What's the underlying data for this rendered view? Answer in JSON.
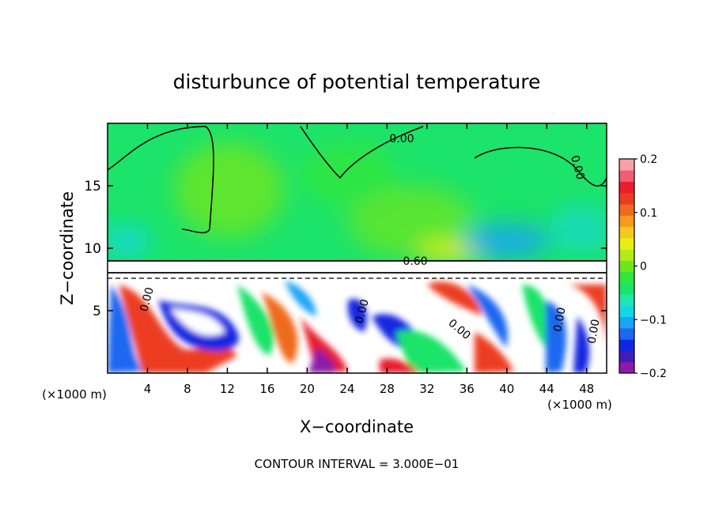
{
  "chart_data": {
    "type": "heatmap",
    "title": "disturbunce of potential temperature",
    "xlabel": "X−coordinate",
    "ylabel": "Z−coordinate",
    "x_unit": "(×1000 m)",
    "z_unit": "(×1000 m)",
    "xlim": [
      0,
      50
    ],
    "ylim": [
      0,
      20
    ],
    "x_ticks": [
      4,
      8,
      12,
      16,
      20,
      24,
      28,
      32,
      36,
      40,
      44,
      48
    ],
    "y_ticks": [
      5,
      10,
      15
    ],
    "colorbar": {
      "range": [
        -0.2,
        0.2
      ],
      "tick_labels": [
        {
          "value": 0.2,
          "text": "0.2"
        },
        {
          "value": 0.1,
          "text": "0.1"
        },
        {
          "value": 0.0,
          "text": "0"
        },
        {
          "value": -0.1,
          "text": "−0.1"
        },
        {
          "value": -0.2,
          "text": "−0.2"
        }
      ],
      "colors": [
        "#8c1aa6",
        "#3f1fb8",
        "#1226e0",
        "#1d67f0",
        "#1aa4f5",
        "#13d6e6",
        "#1ee8b0",
        "#1ce36a",
        "#2ee63c",
        "#6ee61f",
        "#b4ea1a",
        "#e8ee14",
        "#f5c81e",
        "#f79a1e",
        "#f06a1e",
        "#ec3c22",
        "#e81e2e",
        "#f05c72",
        "#f7a0aa"
      ]
    },
    "contour_labels": [
      "0.00",
      "0.00",
      "0.60",
      "0.00",
      "0.00",
      "0.00",
      "0.00",
      "0.00"
    ],
    "footer": "CONTOUR INTERVAL = 3.000E−01"
  }
}
